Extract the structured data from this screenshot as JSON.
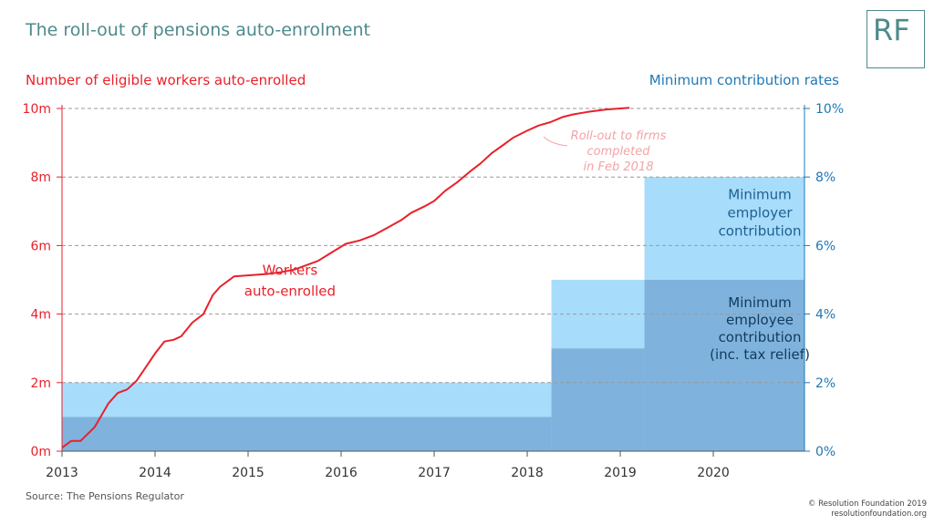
{
  "header": {
    "title": "The roll-out of pensions auto-enrolment",
    "logo_text": "RF"
  },
  "footer": {
    "source": "Source: The Pensions Regulator",
    "copyright_line1": "© Resolution Foundation 2019",
    "copyright_line2": "resolutionfoundation.org"
  },
  "colors": {
    "workers_line": "#e8212b",
    "employee_band": "#7fb3dd",
    "employer_band": "#a8dcfb",
    "left_axis": "#e8212b",
    "right_axis": "#1f78b4",
    "grid": "#9a9a9a",
    "annotation": "#f4a3a6"
  },
  "chart_data": {
    "type": "line",
    "title": "The roll-out of pensions auto-enrolment",
    "ylabel_left": "Number of eligible workers auto-enrolled",
    "ylabel_right": "Minimum contribution rates",
    "xlim": [
      2013,
      2020.98
    ],
    "ylim_left": [
      0,
      10
    ],
    "ylim_right": [
      0,
      10
    ],
    "x_ticks": [
      "2013",
      "2014",
      "2015",
      "2016",
      "2017",
      "2018",
      "2019",
      "2020"
    ],
    "y_left_ticks": [
      "0m",
      "2m",
      "4m",
      "6m",
      "8m",
      "10m"
    ],
    "y_right_ticks": [
      "0%",
      "2%",
      "4%",
      "6%",
      "8%",
      "10%"
    ],
    "grid": true,
    "series": [
      {
        "name": "Workers auto-enrolled",
        "axis": "left",
        "unit": "millions",
        "points": [
          [
            2013.0,
            0.1
          ],
          [
            2013.1,
            0.3
          ],
          [
            2013.2,
            0.3
          ],
          [
            2013.35,
            0.7
          ],
          [
            2013.5,
            1.4
          ],
          [
            2013.6,
            1.7
          ],
          [
            2013.7,
            1.8
          ],
          [
            2013.8,
            2.05
          ],
          [
            2013.9,
            2.45
          ],
          [
            2014.0,
            2.85
          ],
          [
            2014.1,
            3.2
          ],
          [
            2014.2,
            3.25
          ],
          [
            2014.28,
            3.35
          ],
          [
            2014.4,
            3.75
          ],
          [
            2014.52,
            4.0
          ],
          [
            2014.62,
            4.55
          ],
          [
            2014.7,
            4.8
          ],
          [
            2014.85,
            5.1
          ],
          [
            2015.0,
            5.13
          ],
          [
            2015.2,
            5.17
          ],
          [
            2015.35,
            5.22
          ],
          [
            2015.5,
            5.3
          ],
          [
            2015.62,
            5.42
          ],
          [
            2015.75,
            5.55
          ],
          [
            2015.9,
            5.8
          ],
          [
            2016.05,
            6.05
          ],
          [
            2016.2,
            6.15
          ],
          [
            2016.35,
            6.3
          ],
          [
            2016.5,
            6.52
          ],
          [
            2016.65,
            6.75
          ],
          [
            2016.75,
            6.95
          ],
          [
            2016.9,
            7.15
          ],
          [
            2017.0,
            7.3
          ],
          [
            2017.12,
            7.6
          ],
          [
            2017.25,
            7.85
          ],
          [
            2017.38,
            8.15
          ],
          [
            2017.5,
            8.4
          ],
          [
            2017.62,
            8.7
          ],
          [
            2017.75,
            8.95
          ],
          [
            2017.85,
            9.15
          ],
          [
            2018.0,
            9.35
          ],
          [
            2018.12,
            9.5
          ],
          [
            2018.25,
            9.6
          ],
          [
            2018.38,
            9.75
          ],
          [
            2018.5,
            9.83
          ],
          [
            2018.65,
            9.9
          ],
          [
            2018.85,
            9.97
          ],
          [
            2019.0,
            10.0
          ],
          [
            2019.1,
            10.02
          ]
        ]
      }
    ],
    "contribution_bands": [
      {
        "name": "Minimum employee contribution (inc. tax relief)",
        "axis": "right",
        "unit": "%",
        "steps": [
          {
            "from": 2013.0,
            "to": 2018.26,
            "value": 1
          },
          {
            "from": 2018.26,
            "to": 2019.26,
            "value": 3
          },
          {
            "from": 2019.26,
            "to": 2020.98,
            "value": 5
          }
        ]
      },
      {
        "name": "Minimum employer contribution",
        "axis": "right",
        "unit": "%",
        "steps": [
          {
            "from": 2013.0,
            "to": 2018.26,
            "value": 1
          },
          {
            "from": 2018.26,
            "to": 2019.26,
            "value": 2
          },
          {
            "from": 2019.26,
            "to": 2020.98,
            "value": 3
          }
        ]
      }
    ],
    "annotations": [
      {
        "text": "Workers",
        "text2": "auto-enrolled",
        "x": 2015.45,
        "y": 5.15,
        "color": "red"
      },
      {
        "text": "Roll-out to firms",
        "text2": "completed",
        "text3": "in Feb 2018",
        "x": 2018.95,
        "y": 9.1,
        "color": "pink"
      },
      {
        "text": "Minimum",
        "text2": "employer",
        "text3": "contribution",
        "x": 2020.5,
        "y": 7.35,
        "color": "blue"
      },
      {
        "text": "Minimum",
        "text2": "employee",
        "text3": "contribution",
        "text4": "(inc. tax relief)",
        "x": 2020.5,
        "y": 4.2,
        "color": "darkblue"
      }
    ]
  }
}
